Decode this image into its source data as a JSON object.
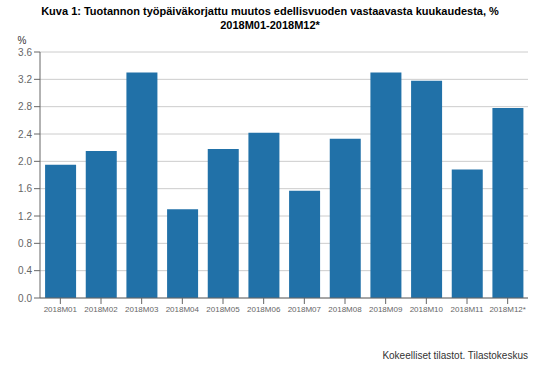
{
  "chart_data": {
    "type": "bar",
    "title": "Kuva 1: Tuotannon työpäiväkorjattu muutos edellisvuoden vastaavasta kuukaudesta, %",
    "subtitle": "2018M01-2018M12*",
    "categories": [
      "2018M01",
      "2018M02",
      "2018M03",
      "2018M04",
      "2018M05",
      "2018M06",
      "2018M07",
      "2018M08",
      "2018M09",
      "2018M10",
      "2018M11",
      "2018M12*"
    ],
    "values": [
      1.95,
      2.15,
      3.3,
      1.3,
      2.18,
      2.42,
      1.57,
      2.33,
      3.3,
      3.18,
      1.88,
      2.78
    ],
    "color": "#2171a8",
    "y_label": "%",
    "ylim": [
      0,
      3.6
    ],
    "yticks": [
      {
        "value": 0,
        "label": "0.0"
      },
      0.4,
      0.8,
      1.2,
      1.6,
      {
        "value": 2,
        "label": "2.0"
      },
      2.4,
      2.8,
      3.2,
      3.6
    ],
    "grid": true,
    "annotations": [
      "Kokeelliset tilastot. Tilastokeskus"
    ]
  }
}
